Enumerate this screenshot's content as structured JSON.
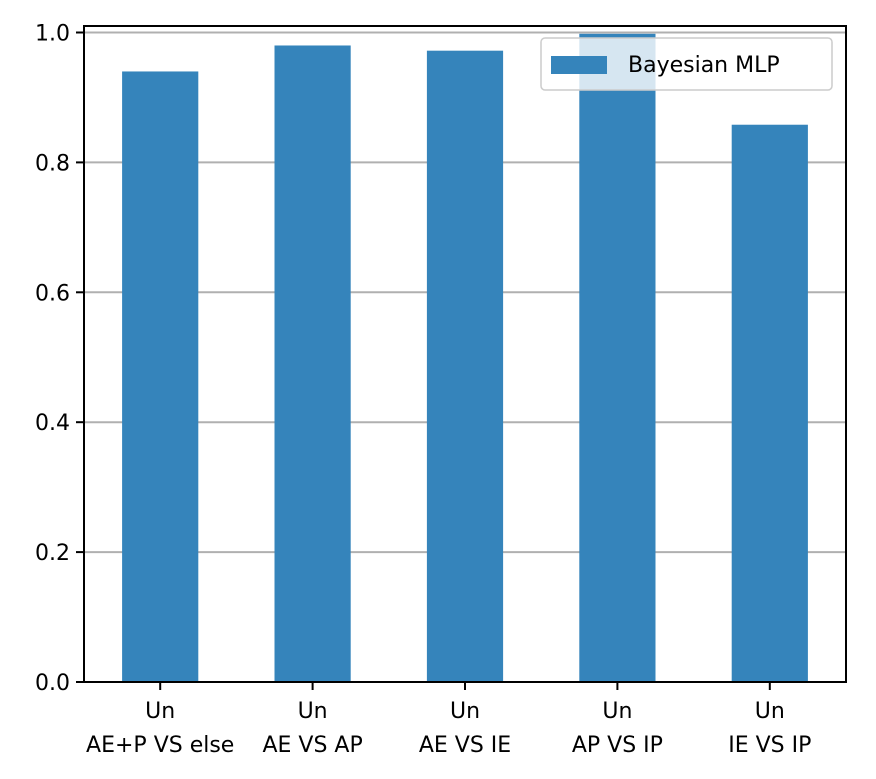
{
  "chart_data": {
    "type": "bar",
    "categories": [
      [
        "Un",
        "AE+P VS else"
      ],
      [
        "Un",
        "AE VS AP"
      ],
      [
        "Un",
        "AE VS IE"
      ],
      [
        "Un",
        "AP VS IP"
      ],
      [
        "Un",
        "IE VS IP"
      ]
    ],
    "series": [
      {
        "name": "Bayesian MLP",
        "values": [
          0.94,
          0.98,
          0.972,
          0.998,
          0.858
        ]
      }
    ],
    "ylim": [
      0,
      1.01
    ],
    "yticks": [
      "0.0",
      "0.2",
      "0.4",
      "0.6",
      "0.8",
      "1.0"
    ],
    "grid": "y",
    "legend_position": "top-right",
    "colors": {
      "bar": "#3584bb",
      "grid": "#b0b0b0",
      "axis": "#000000"
    }
  }
}
